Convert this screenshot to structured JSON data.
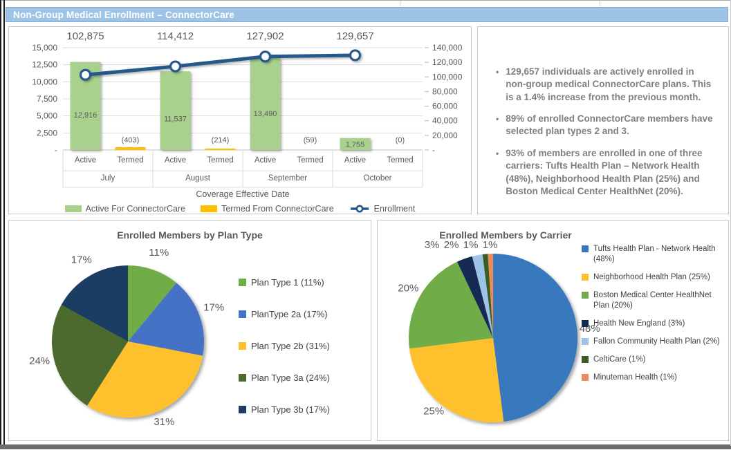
{
  "title_bar": {
    "label": "Non-Group Medical Enrollment – ConnectorCare"
  },
  "colors": {
    "title_bar_bg": "#9DC3E6",
    "grid": "#D9D9D9",
    "axis_line": "#BFBFBF",
    "chart_text": "#595959",
    "bullet_text": "#7F7F7F",
    "frame_bottom": "#6E6E6E"
  },
  "chart_data": [
    {
      "type": "bar",
      "subtype": "combo-bar-line",
      "title": "",
      "categories": [
        "July",
        "August",
        "September",
        "October"
      ],
      "sub_categories": [
        "Active",
        "Termed"
      ],
      "series": [
        {
          "name": "Active For ConnectorCare",
          "kind": "bar",
          "color": "#A9D18E",
          "values": [
            12916,
            11537,
            13490,
            1755
          ],
          "labels": [
            "12,916",
            "11,537",
            "13,490",
            "1,755"
          ]
        },
        {
          "name": "Termed From ConnectorCare",
          "kind": "bar",
          "color": "#FFC000",
          "values": [
            -403,
            -214,
            -59,
            0
          ],
          "labels": [
            "(403)",
            "(214)",
            "(59)",
            "(0)"
          ]
        },
        {
          "name": "Enrollment",
          "kind": "line",
          "color": "#27588B",
          "axis": "right",
          "values": [
            102875,
            114412,
            127902,
            129657
          ],
          "labels": [
            "102,875",
            "114,412",
            "127,902",
            "129,657"
          ]
        }
      ],
      "left_axis": {
        "min": 0,
        "max": 15000,
        "ticks": [
          "15,000",
          "12,500",
          "10,000",
          "7,500",
          "5,000",
          "2,500",
          "-"
        ]
      },
      "right_axis": {
        "min": 0,
        "max": 140000,
        "ticks": [
          "140,000",
          "120,000",
          "100,000",
          "80,000",
          "60,000",
          "40,000",
          "20,000",
          "-"
        ]
      },
      "xlabel": "Coverage Effective Date",
      "legend_position": "bottom",
      "grid": true
    },
    {
      "type": "pie",
      "title": "Enrolled Members by Plan Type",
      "legend_position": "right",
      "slices": [
        {
          "label": "Plan Type 1 (11%)",
          "value": 11,
          "pct_label": "11%",
          "color": "#70AD47"
        },
        {
          "label": "PlanType 2a (17%)",
          "value": 17,
          "pct_label": "17%",
          "color": "#4472C4"
        },
        {
          "label": "Plan Type 2b (31%)",
          "value": 31,
          "pct_label": "31%",
          "color": "#FFC02E"
        },
        {
          "label": "Plan Type 3a (24%)",
          "value": 24,
          "pct_label": "24%",
          "color": "#4D6B2E"
        },
        {
          "label": "Plan Type 3b (17%)",
          "value": 17,
          "pct_label": "17%",
          "color": "#1F3D64"
        }
      ]
    },
    {
      "type": "pie",
      "title": "Enrolled Members by Carrier",
      "legend_position": "right",
      "slices": [
        {
          "label": "Tufts Health Plan - Network Health (48%)",
          "value": 48,
          "pct_label": "48%",
          "color": "#3779BE"
        },
        {
          "label": "Neighborhood Health Plan (25%)",
          "value": 25,
          "pct_label": "25%",
          "color": "#FFC02E"
        },
        {
          "label": "Boston Medical Center HealthNet Plan (20%)",
          "value": 20,
          "pct_label": "20%",
          "color": "#6FAC47"
        },
        {
          "label": "Health New England (3%)",
          "value": 3,
          "pct_label": "3%",
          "color": "#122A52"
        },
        {
          "label": "Fallon Community Health Plan (2%)",
          "value": 2,
          "pct_label": "2%",
          "color": "#9DC3E6"
        },
        {
          "label": "CeltiCare (1%)",
          "value": 1,
          "pct_label": "1%",
          "color": "#3A5B22"
        },
        {
          "label": "Minuteman Health (1%)",
          "value": 1,
          "pct_label": "1%",
          "color": "#EC8C5A"
        }
      ]
    }
  ],
  "insights": {
    "bullets": [
      "129,657 individuals are actively enrolled in non-group medical ConnectorCare plans. This is a 1.4% increase from the previous month.",
      "89% of enrolled ConnectorCare members have selected plan types 2 and 3.",
      "93% of members are enrolled in one of three carriers: Tufts Health Plan – Network Health (48%), Neighborhood Health Plan (25%) and Boston Medical Center HealthNet (20%)."
    ]
  }
}
